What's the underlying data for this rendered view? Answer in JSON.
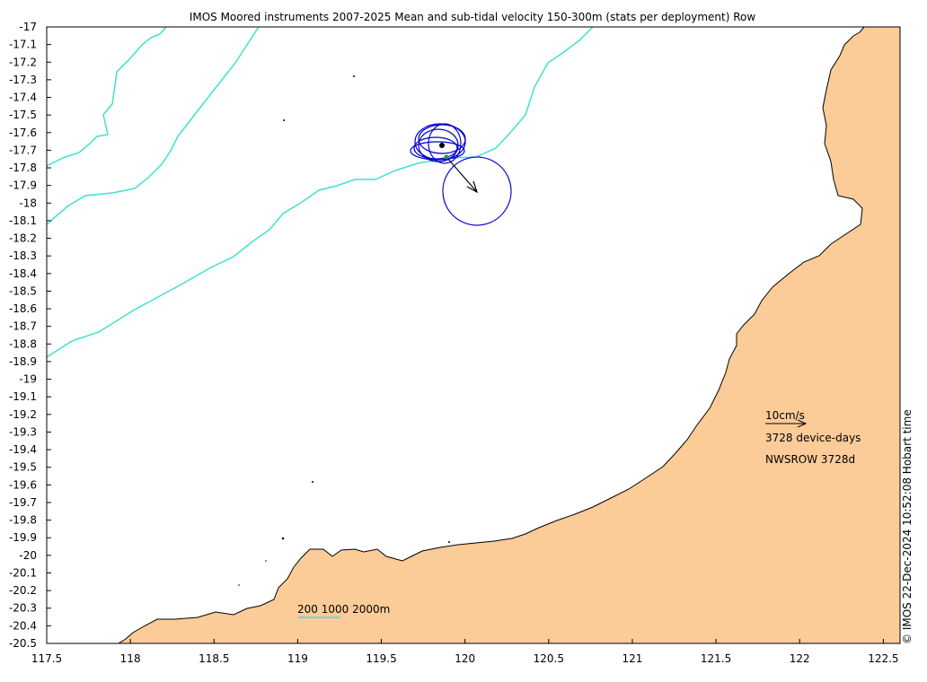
{
  "title": "IMOS Moored instruments 2007-2025 Mean and sub-tidal velocity 150-300m (stats per deployment) Row",
  "credit": "© IMOS 22-Dec-2024 10:52:08 Hobart time",
  "axes": {
    "x_ticks": [
      "117.5",
      "118",
      "118.5",
      "119",
      "119.5",
      "120",
      "120.5",
      "121",
      "121.5",
      "122",
      "122.5"
    ],
    "y_ticks": [
      "-17",
      "-17.1",
      "-17.2",
      "-17.3",
      "-17.4",
      "-17.5",
      "-17.6",
      "-17.7",
      "-17.8",
      "-17.9",
      "-18",
      "-18.1",
      "-18.2",
      "-18.3",
      "-18.4",
      "-18.5",
      "-18.6",
      "-18.7",
      "-18.8",
      "-18.9",
      "-19",
      "-19.1",
      "-19.2",
      "-19.3",
      "-19.4",
      "-19.5",
      "-19.6",
      "-19.7",
      "-19.8",
      "-19.9",
      "-20",
      "-20.1",
      "-20.2",
      "-20.3",
      "-20.4",
      "-20.5"
    ],
    "lon_range": [
      117.5,
      122.6
    ],
    "lat_range": [
      -20.5,
      -17
    ]
  },
  "legend": {
    "scale_label": "10cm/s",
    "device_days": "3728 device-days",
    "site_label": "NWSROW 3728d",
    "depth_contours": "200 1000 2000m"
  },
  "mooring": {
    "lon": 119.9,
    "lat": -17.77,
    "mean_velocity_arrow": {
      "east_cm_s": 4.5,
      "north_cm_s": -5.5
    }
  },
  "colors": {
    "land": "#fbcb98",
    "coast": "#000000",
    "isobath": "#40e0d0",
    "ellipse": "#0000cd",
    "arrow": "#000000"
  }
}
